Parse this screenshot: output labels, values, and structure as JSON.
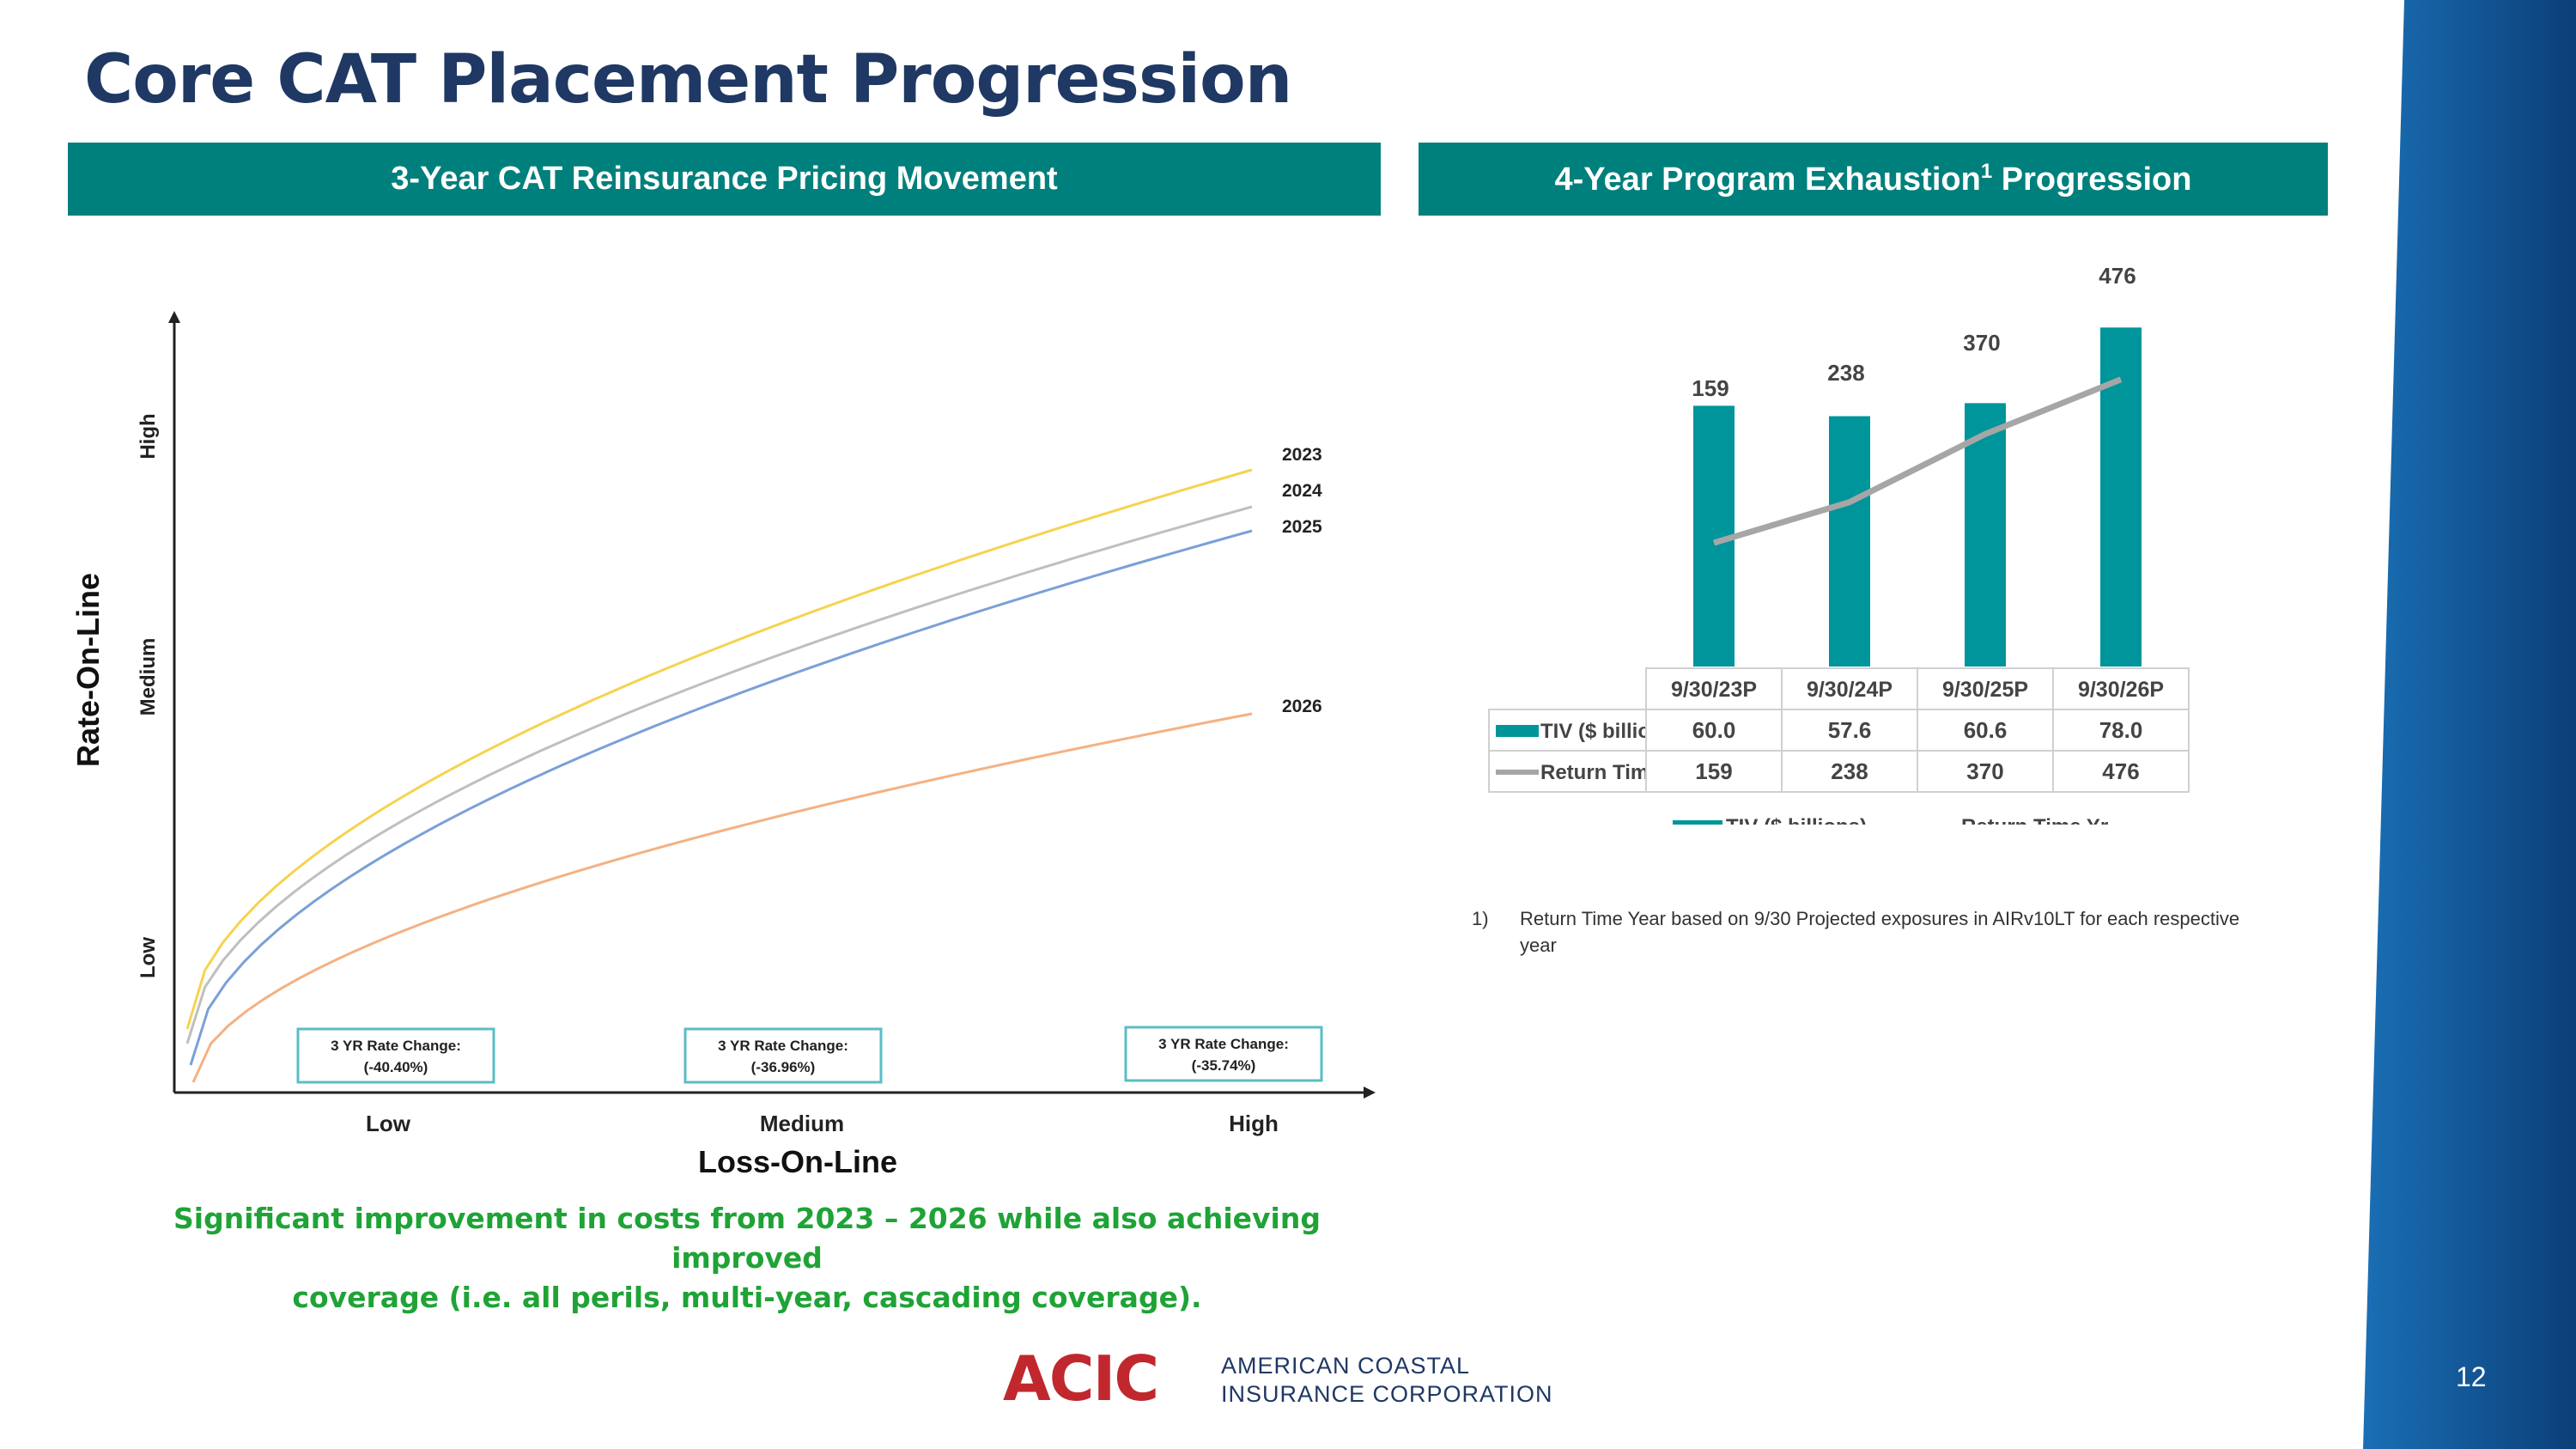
{
  "slide": {
    "title": "Core CAT Placement Progression",
    "page_number": "12",
    "caption_line1": "Significant improvement in costs from 2023 – 2026 while also achieving improved",
    "caption_line2": "coverage (i.e. all perils, multi-year, cascading coverage).",
    "footnote_number": "1)",
    "footnote_text": "Return Time Year based on 9/30 Projected exposures in AIRv10LT for each respective year",
    "logo_mark": "ACIC",
    "logo_line1": "AMERICAN COASTAL",
    "logo_line2": "INSURANCE CORPORATION"
  },
  "colors": {
    "title": "#1f3864",
    "banner": "#00807c",
    "caption": "#1fa336",
    "bar": "#00959a",
    "line": "#a6a6a6",
    "curve_2023": "#f5d34e",
    "curve_2024": "#bfbfbf",
    "curve_2025": "#7aa0d8",
    "curve_2026": "#f4b183",
    "logo_red": "#c0282d",
    "side_band": "#0d4f8c"
  },
  "left_panel": {
    "banner": "3-Year CAT Reinsurance Pricing Movement"
  },
  "right_panel": {
    "banner_main": "4-Year Program Exhaustion",
    "banner_sup": "1",
    "banner_end": " Progression"
  },
  "chart_data": [
    {
      "type": "line",
      "title": "3-Year CAT Reinsurance Pricing Movement",
      "xlabel": "Loss-On-Line",
      "ylabel": "Rate-On-Line",
      "x_ticks": [
        "Low",
        "Medium",
        "High"
      ],
      "y_ticks": [
        "Low",
        "Medium",
        "High"
      ],
      "series": [
        {
          "name": "2023"
        },
        {
          "name": "2024"
        },
        {
          "name": "2025"
        },
        {
          "name": "2026"
        }
      ],
      "annotations": [
        {
          "line1": "3 YR Rate Change:",
          "line2": "(-40.40%)"
        },
        {
          "line1": "3 YR Rate Change:",
          "line2": "(-36.96%)"
        },
        {
          "line1": "3 YR Rate Change:",
          "line2": "(-35.74%)"
        }
      ],
      "grid": false
    },
    {
      "type": "bar",
      "title": "4-Year Program Exhaustion1 Progression",
      "categories": [
        "9/30/23P",
        "9/30/24P",
        "9/30/25P",
        "9/30/26P"
      ],
      "series": [
        {
          "name": "TIV ($ billions)",
          "type": "bar",
          "values": [
            60.0,
            57.6,
            60.6,
            78.0
          ],
          "labels": [
            "60.0",
            "57.6",
            "60.6",
            "78.0"
          ]
        },
        {
          "name": "Return Time Yr",
          "type": "line",
          "values": [
            159,
            238,
            370,
            476
          ],
          "labels": [
            "159",
            "238",
            "370",
            "476"
          ]
        }
      ],
      "data_table": true,
      "legend": "bottom",
      "grid": false
    }
  ]
}
